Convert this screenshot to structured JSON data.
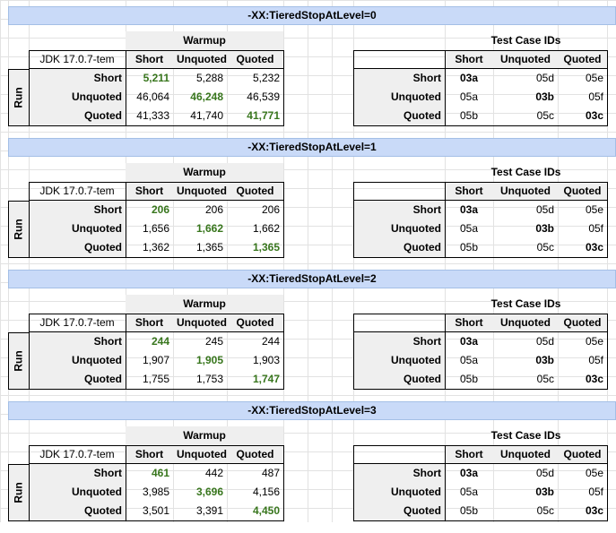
{
  "sections": [
    {
      "title": "-XX:TieredStopAtLevel=0",
      "warmup_header": "Warmup",
      "testcase_header": "Test Case IDs",
      "jdk_label": "JDK 17.0.7-tem",
      "col_labels": [
        "Short",
        "Unquoted",
        "Quoted"
      ],
      "row_labels": [
        "Short",
        "Unquoted",
        "Quoted"
      ],
      "run_label": "Run",
      "values": [
        [
          "5,211",
          "5,288",
          "5,232"
        ],
        [
          "46,064",
          "46,248",
          "46,539"
        ],
        [
          "41,333",
          "41,740",
          "41,771"
        ]
      ],
      "ids": [
        [
          "03a",
          "05d",
          "05e"
        ],
        [
          "05a",
          "03b",
          "05f"
        ],
        [
          "05b",
          "05c",
          "03c"
        ]
      ]
    },
    {
      "title": "-XX:TieredStopAtLevel=1",
      "warmup_header": "Warmup",
      "testcase_header": "Test Case IDs",
      "jdk_label": "JDK 17.0.7-tem",
      "col_labels": [
        "Short",
        "Unquoted",
        "Quoted"
      ],
      "row_labels": [
        "Short",
        "Unquoted",
        "Quoted"
      ],
      "run_label": "Run",
      "values": [
        [
          "206",
          "206",
          "206"
        ],
        [
          "1,656",
          "1,662",
          "1,662"
        ],
        [
          "1,362",
          "1,365",
          "1,365"
        ]
      ],
      "ids": [
        [
          "03a",
          "05d",
          "05e"
        ],
        [
          "05a",
          "03b",
          "05f"
        ],
        [
          "05b",
          "05c",
          "03c"
        ]
      ]
    },
    {
      "title": "-XX:TieredStopAtLevel=2",
      "warmup_header": "Warmup",
      "testcase_header": "Test Case IDs",
      "jdk_label": "JDK 17.0.7-tem",
      "col_labels": [
        "Short",
        "Unquoted",
        "Quoted"
      ],
      "row_labels": [
        "Short",
        "Unquoted",
        "Quoted"
      ],
      "run_label": "Run",
      "values": [
        [
          "244",
          "245",
          "244"
        ],
        [
          "1,907",
          "1,905",
          "1,903"
        ],
        [
          "1,755",
          "1,753",
          "1,747"
        ]
      ],
      "ids": [
        [
          "03a",
          "05d",
          "05e"
        ],
        [
          "05a",
          "03b",
          "05f"
        ],
        [
          "05b",
          "05c",
          "03c"
        ]
      ]
    },
    {
      "title": "-XX:TieredStopAtLevel=3",
      "warmup_header": "Warmup",
      "testcase_header": "Test Case IDs",
      "jdk_label": "JDK 17.0.7-tem",
      "col_labels": [
        "Short",
        "Unquoted",
        "Quoted"
      ],
      "row_labels": [
        "Short",
        "Unquoted",
        "Quoted"
      ],
      "run_label": "Run",
      "values": [
        [
          "461",
          "442",
          "487"
        ],
        [
          "3,985",
          "3,696",
          "4,156"
        ],
        [
          "3,501",
          "3,391",
          "4,450"
        ]
      ],
      "ids": [
        [
          "03a",
          "05d",
          "05e"
        ],
        [
          "05a",
          "03b",
          "05f"
        ],
        [
          "05b",
          "05c",
          "03c"
        ]
      ]
    }
  ]
}
